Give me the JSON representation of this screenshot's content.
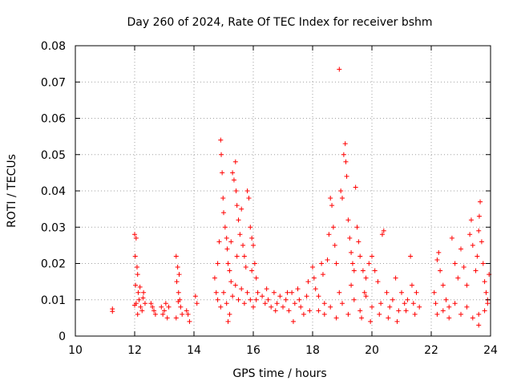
{
  "chart_data": {
    "type": "scatter",
    "title": "Day 260 of 2024, Rate Of TEC Index for receiver bshm",
    "xlabel": "GPS time / hours",
    "ylabel": "ROTI / TECUs",
    "xlim": [
      10,
      24
    ],
    "ylim": [
      0,
      0.08
    ],
    "x_ticks": [
      "10",
      "12",
      "14",
      "16",
      "18",
      "20",
      "22",
      "24"
    ],
    "y_ticks": [
      "0",
      "0.01",
      "0.02",
      "0.03",
      "0.04",
      "0.05",
      "0.06",
      "0.07",
      "0.08"
    ],
    "grid": true,
    "legend": "none",
    "marker": "plus",
    "colors": {
      "series": "#ff0000",
      "grid": "#a0a0a0",
      "axes": "#000000"
    },
    "series": [
      {
        "values": [
          [
            11.25,
            0.0075
          ],
          [
            11.25,
            0.0068
          ],
          [
            12.0,
            0.028
          ],
          [
            12.05,
            0.027
          ],
          [
            12.02,
            0.022
          ],
          [
            12.08,
            0.019
          ],
          [
            12.1,
            0.017
          ],
          [
            12.03,
            0.014
          ],
          [
            12.12,
            0.012
          ],
          [
            12.15,
            0.01
          ],
          [
            12.05,
            0.009
          ],
          [
            12.2,
            0.008
          ],
          [
            12.25,
            0.007
          ],
          [
            12.3,
            0.012
          ],
          [
            12.35,
            0.009
          ],
          [
            12.1,
            0.006
          ],
          [
            12.18,
            0.0135
          ],
          [
            12.28,
            0.0105
          ],
          [
            12.0,
            0.0085
          ],
          [
            12.6,
            0.008
          ],
          [
            12.65,
            0.007
          ],
          [
            12.7,
            0.006
          ],
          [
            12.55,
            0.009
          ],
          [
            12.9,
            0.008
          ],
          [
            12.95,
            0.006
          ],
          [
            13.0,
            0.007
          ],
          [
            13.05,
            0.009
          ],
          [
            13.1,
            0.005
          ],
          [
            13.15,
            0.008
          ],
          [
            13.4,
            0.022
          ],
          [
            13.45,
            0.019
          ],
          [
            13.5,
            0.017
          ],
          [
            13.42,
            0.015
          ],
          [
            13.48,
            0.012
          ],
          [
            13.52,
            0.01
          ],
          [
            13.55,
            0.008
          ],
          [
            13.6,
            0.006
          ],
          [
            13.4,
            0.005
          ],
          [
            13.47,
            0.0095
          ],
          [
            13.75,
            0.007
          ],
          [
            13.8,
            0.006
          ],
          [
            13.85,
            0.004
          ],
          [
            14.05,
            0.011
          ],
          [
            14.1,
            0.009
          ],
          [
            14.7,
            0.016
          ],
          [
            14.75,
            0.012
          ],
          [
            14.8,
            0.02
          ],
          [
            14.85,
            0.026
          ],
          [
            14.9,
            0.054
          ],
          [
            14.92,
            0.05
          ],
          [
            14.95,
            0.045
          ],
          [
            14.98,
            0.038
          ],
          [
            15.0,
            0.034
          ],
          [
            15.05,
            0.03
          ],
          [
            15.1,
            0.027
          ],
          [
            15.12,
            0.024
          ],
          [
            15.15,
            0.02
          ],
          [
            15.2,
            0.018
          ],
          [
            15.25,
            0.015
          ],
          [
            15.3,
            0.045
          ],
          [
            15.35,
            0.043
          ],
          [
            15.4,
            0.048
          ],
          [
            15.42,
            0.04
          ],
          [
            15.45,
            0.036
          ],
          [
            15.5,
            0.032
          ],
          [
            15.55,
            0.028
          ],
          [
            15.6,
            0.035
          ],
          [
            15.65,
            0.025
          ],
          [
            15.7,
            0.022
          ],
          [
            15.75,
            0.019
          ],
          [
            15.8,
            0.04
          ],
          [
            15.85,
            0.038
          ],
          [
            15.9,
            0.03
          ],
          [
            15.95,
            0.027
          ],
          [
            16.0,
            0.025
          ],
          [
            16.05,
            0.02
          ],
          [
            16.1,
            0.016
          ],
          [
            16.15,
            0.012
          ],
          [
            14.8,
            0.01
          ],
          [
            14.9,
            0.008
          ],
          [
            15.0,
            0.012
          ],
          [
            15.1,
            0.009
          ],
          [
            15.2,
            0.006
          ],
          [
            15.3,
            0.011
          ],
          [
            15.4,
            0.014
          ],
          [
            15.5,
            0.01
          ],
          [
            15.6,
            0.013
          ],
          [
            15.7,
            0.009
          ],
          [
            15.8,
            0.012
          ],
          [
            15.9,
            0.01
          ],
          [
            16.0,
            0.008
          ],
          [
            16.1,
            0.01
          ],
          [
            15.15,
            0.004
          ],
          [
            15.45,
            0.022
          ],
          [
            15.25,
            0.026
          ],
          [
            15.95,
            0.018
          ],
          [
            16.3,
            0.011
          ],
          [
            16.4,
            0.009
          ],
          [
            16.5,
            0.01
          ],
          [
            16.6,
            0.008
          ],
          [
            16.7,
            0.012
          ],
          [
            16.8,
            0.009
          ],
          [
            16.9,
            0.011
          ],
          [
            17.0,
            0.008
          ],
          [
            17.1,
            0.01
          ],
          [
            17.2,
            0.007
          ],
          [
            17.3,
            0.012
          ],
          [
            17.4,
            0.009
          ],
          [
            17.5,
            0.013
          ],
          [
            17.6,
            0.008
          ],
          [
            17.7,
            0.006
          ],
          [
            17.8,
            0.011
          ],
          [
            17.9,
            0.007
          ],
          [
            16.45,
            0.013
          ],
          [
            16.75,
            0.007
          ],
          [
            17.15,
            0.012
          ],
          [
            17.55,
            0.01
          ],
          [
            17.85,
            0.015
          ],
          [
            17.35,
            0.004
          ],
          [
            18.0,
            0.019
          ],
          [
            18.05,
            0.016
          ],
          [
            18.1,
            0.013
          ],
          [
            18.2,
            0.011
          ],
          [
            18.3,
            0.02
          ],
          [
            18.35,
            0.017
          ],
          [
            18.4,
            0.009
          ],
          [
            18.5,
            0.021
          ],
          [
            18.55,
            0.028
          ],
          [
            18.6,
            0.038
          ],
          [
            18.65,
            0.036
          ],
          [
            18.7,
            0.03
          ],
          [
            18.75,
            0.025
          ],
          [
            18.8,
            0.02
          ],
          [
            18.9,
            0.0735
          ],
          [
            18.95,
            0.04
          ],
          [
            19.0,
            0.038
          ],
          [
            19.05,
            0.05
          ],
          [
            19.1,
            0.053
          ],
          [
            19.12,
            0.048
          ],
          [
            19.15,
            0.044
          ],
          [
            19.2,
            0.032
          ],
          [
            19.25,
            0.027
          ],
          [
            19.3,
            0.023
          ],
          [
            19.35,
            0.02
          ],
          [
            19.4,
            0.018
          ],
          [
            19.45,
            0.041
          ],
          [
            19.5,
            0.03
          ],
          [
            19.55,
            0.026
          ],
          [
            19.6,
            0.022
          ],
          [
            19.7,
            0.018
          ],
          [
            19.8,
            0.016
          ],
          [
            19.9,
            0.02
          ],
          [
            20.0,
            0.022
          ],
          [
            20.1,
            0.018
          ],
          [
            18.2,
            0.007
          ],
          [
            18.4,
            0.006
          ],
          [
            18.6,
            0.008
          ],
          [
            18.8,
            0.005
          ],
          [
            19.0,
            0.009
          ],
          [
            19.2,
            0.006
          ],
          [
            19.4,
            0.01
          ],
          [
            19.6,
            0.007
          ],
          [
            19.8,
            0.011
          ],
          [
            20.0,
            0.008
          ],
          [
            19.65,
            0.005
          ],
          [
            19.95,
            0.004
          ],
          [
            18.9,
            0.012
          ],
          [
            19.3,
            0.014
          ],
          [
            19.75,
            0.012
          ],
          [
            20.2,
            0.015
          ],
          [
            20.3,
            0.009
          ],
          [
            20.35,
            0.028
          ],
          [
            20.4,
            0.029
          ],
          [
            20.5,
            0.012
          ],
          [
            20.6,
            0.008
          ],
          [
            20.7,
            0.01
          ],
          [
            20.8,
            0.016
          ],
          [
            20.9,
            0.007
          ],
          [
            21.0,
            0.012
          ],
          [
            21.1,
            0.009
          ],
          [
            21.2,
            0.01
          ],
          [
            21.3,
            0.022
          ],
          [
            21.35,
            0.014
          ],
          [
            21.4,
            0.009
          ],
          [
            21.5,
            0.012
          ],
          [
            21.6,
            0.008
          ],
          [
            20.25,
            0.006
          ],
          [
            20.55,
            0.005
          ],
          [
            20.85,
            0.004
          ],
          [
            21.15,
            0.007
          ],
          [
            21.45,
            0.006
          ],
          [
            22.1,
            0.012
          ],
          [
            22.15,
            0.009
          ],
          [
            22.2,
            0.021
          ],
          [
            22.25,
            0.023
          ],
          [
            22.3,
            0.018
          ],
          [
            22.4,
            0.014
          ],
          [
            22.5,
            0.01
          ],
          [
            22.6,
            0.008
          ],
          [
            22.7,
            0.027
          ],
          [
            22.8,
            0.02
          ],
          [
            22.9,
            0.016
          ],
          [
            23.0,
            0.024
          ],
          [
            23.1,
            0.019
          ],
          [
            23.2,
            0.014
          ],
          [
            23.3,
            0.028
          ],
          [
            23.35,
            0.032
          ],
          [
            23.4,
            0.025
          ],
          [
            23.5,
            0.018
          ],
          [
            23.55,
            0.022
          ],
          [
            23.6,
            0.029
          ],
          [
            23.62,
            0.033
          ],
          [
            23.65,
            0.037
          ],
          [
            23.7,
            0.026
          ],
          [
            23.75,
            0.02
          ],
          [
            23.8,
            0.015
          ],
          [
            23.85,
            0.012
          ],
          [
            23.9,
            0.009
          ],
          [
            23.95,
            0.017
          ],
          [
            22.2,
            0.006
          ],
          [
            22.4,
            0.007
          ],
          [
            22.6,
            0.005
          ],
          [
            22.8,
            0.009
          ],
          [
            23.0,
            0.006
          ],
          [
            23.2,
            0.008
          ],
          [
            23.4,
            0.005
          ],
          [
            23.6,
            0.006
          ],
          [
            23.8,
            0.007
          ],
          [
            23.6,
            0.003
          ],
          [
            23.9,
            0.01
          ]
        ]
      }
    ]
  }
}
